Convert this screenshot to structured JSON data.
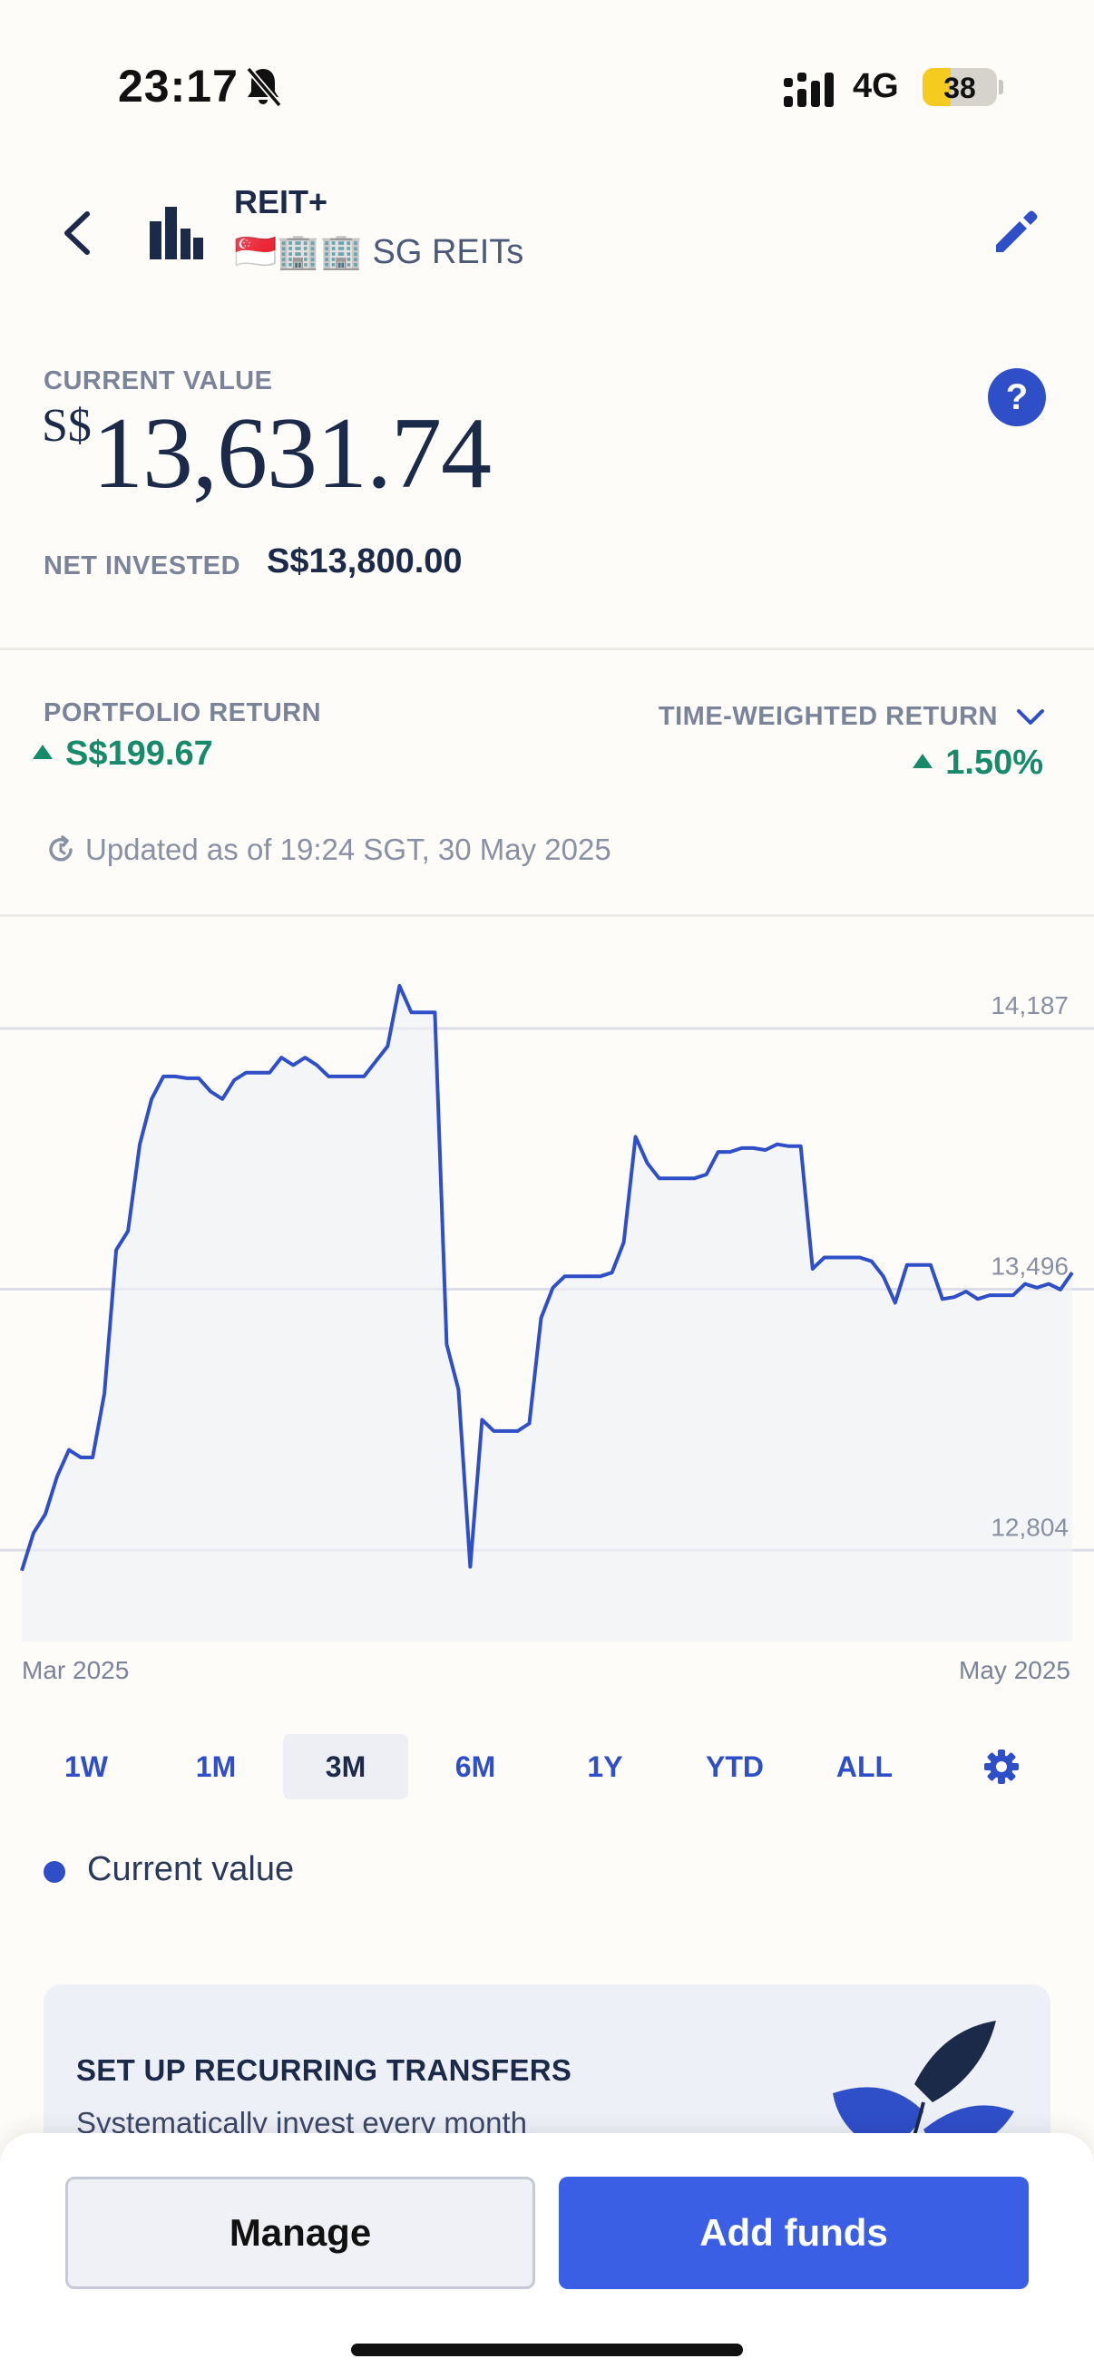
{
  "status_bar": {
    "time": "23:17",
    "network": "4G",
    "battery": "38",
    "battery_level_percent": 38,
    "icons": [
      "bell-slash-icon",
      "signal-bars-icon",
      "battery-icon"
    ]
  },
  "header": {
    "fund_name": "REIT+",
    "fund_subtitle": "🇸🇬🏢🏢 SG REITs",
    "icons": [
      "chevron-left-icon",
      "bar-chart-icon",
      "pencil-icon"
    ]
  },
  "summary": {
    "current_value_label": "CURRENT VALUE",
    "currency": "S$",
    "current_value": "13,631.74",
    "net_invested_label": "NET INVESTED",
    "net_invested_value": "S$13,800.00",
    "help_label": "?"
  },
  "returns": {
    "portfolio_return_label": "PORTFOLIO RETURN",
    "portfolio_return_value": "S$199.67",
    "twr_label": "TIME-WEIGHTED RETURN",
    "twr_value": "1.50%",
    "updated_text": "Updated as of 19:24 SGT, 30 May 2025",
    "positive_color": "#178a6a"
  },
  "chart_data": {
    "type": "area",
    "series": [
      {
        "name": "Current value",
        "color": "#2f4fc9",
        "values": [
          12750,
          12850,
          12900,
          13000,
          13070,
          13050,
          13050,
          13220,
          13600,
          13650,
          13880,
          14000,
          14060,
          14060,
          14055,
          14055,
          14020,
          14000,
          14050,
          14070,
          14070,
          14070,
          14110,
          14090,
          14110,
          14090,
          14060,
          14060,
          14060,
          14060,
          14100,
          14140,
          14300,
          14230,
          14230,
          14230,
          13350,
          13230,
          12760,
          13150,
          13120,
          13120,
          13120,
          13140,
          13420,
          13500,
          13530,
          13530,
          13530,
          13530,
          13540,
          13620,
          13900,
          13830,
          13790,
          13790,
          13790,
          13790,
          13800,
          13860,
          13860,
          13870,
          13870,
          13865,
          13880,
          13875,
          13875,
          13550,
          13580,
          13580,
          13580,
          13580,
          13570,
          13530,
          13460,
          13560,
          13560,
          13560,
          13470,
          13475,
          13490,
          13470,
          13480,
          13480,
          13480,
          13510,
          13500,
          13510,
          13495,
          13540
        ]
      }
    ],
    "x_start_label": "Mar 2025",
    "x_end_label": "May 2025",
    "y_ticks": [
      12804,
      13496,
      14187
    ],
    "y_tick_labels": [
      "12,804",
      "13,496",
      "14,187"
    ],
    "ylim": [
      12610,
      14365
    ],
    "grid": true,
    "legend": "bottom-left"
  },
  "ranges": {
    "items": [
      "1W",
      "1M",
      "3M",
      "6M",
      "1Y",
      "YTD",
      "ALL"
    ],
    "active": "3M",
    "settings_icon": "gear-icon"
  },
  "legend": {
    "label": "Current value"
  },
  "promo": {
    "title": "SET UP RECURRING TRANSFERS",
    "subtitle": "Systematically invest every month",
    "art_icon": "leaf-illustration-icon"
  },
  "actions": {
    "manage_label": "Manage",
    "add_funds_label": "Add funds",
    "accent_color": "#3a5fe5"
  }
}
